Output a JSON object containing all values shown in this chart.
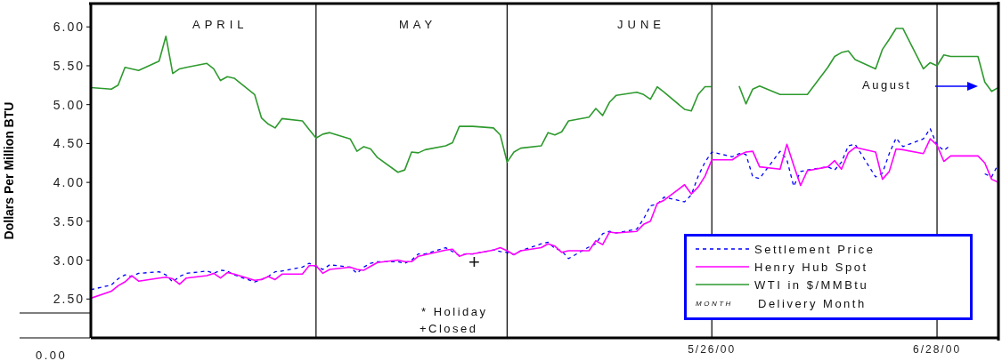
{
  "chart_data": {
    "type": "line",
    "ylabel": "Dollars Per Million BTU",
    "x": [
      "2000-02-25",
      "2000-02-28",
      "2000-02-29",
      "2000-03-01",
      "2000-03-02",
      "2000-03-03",
      "2000-03-06",
      "2000-03-07",
      "2000-03-08",
      "2000-03-09",
      "2000-03-10",
      "2000-03-13",
      "2000-03-14",
      "2000-03-15",
      "2000-03-16",
      "2000-03-17",
      "2000-03-20",
      "2000-03-21",
      "2000-03-22",
      "2000-03-23",
      "2000-03-24",
      "2000-03-27",
      "2000-03-28",
      "2000-03-29",
      "2000-03-30",
      "2000-03-31",
      "2000-04-03",
      "2000-04-04",
      "2000-04-05",
      "2000-04-06",
      "2000-04-07",
      "2000-04-10",
      "2000-04-11",
      "2000-04-12",
      "2000-04-13",
      "2000-04-14",
      "2000-04-17",
      "2000-04-18",
      "2000-04-19",
      "2000-04-20",
      "2000-04-21",
      "2000-04-24",
      "2000-04-25",
      "2000-04-26",
      "2000-04-27",
      "2000-04-28",
      "2000-05-01",
      "2000-05-02",
      "2000-05-03",
      "2000-05-04",
      "2000-05-05",
      "2000-05-08",
      "2000-05-09",
      "2000-05-10",
      "2000-05-11",
      "2000-05-12",
      "2000-05-15",
      "2000-05-16",
      "2000-05-17",
      "2000-05-18",
      "2000-05-19",
      "2000-05-22",
      "2000-05-23",
      "2000-05-24",
      "2000-05-25",
      "2000-05-26",
      "2000-05-29",
      "2000-05-30",
      "2000-05-31",
      "2000-06-01",
      "2000-06-02",
      "2000-06-05",
      "2000-06-06",
      "2000-06-07",
      "2000-06-08",
      "2000-06-09",
      "2000-06-12",
      "2000-06-13",
      "2000-06-14",
      "2000-06-15",
      "2000-06-16",
      "2000-06-19",
      "2000-06-20",
      "2000-06-21",
      "2000-06-22",
      "2000-06-23",
      "2000-06-26",
      "2000-06-27",
      "2000-06-28",
      "2000-06-29",
      "2000-06-30",
      "2000-07-03",
      "2000-07-04",
      "2000-07-05",
      "2000-07-06",
      "2000-07-07"
    ],
    "series": [
      {
        "name": "Settlement Price",
        "color": "#0000ff",
        "line_style": "dashed",
        "values": [
          2.62,
          2.68,
          2.76,
          2.81,
          2.79,
          2.83,
          2.85,
          2.81,
          2.72,
          2.79,
          2.83,
          2.86,
          2.83,
          2.87,
          2.86,
          2.81,
          2.72,
          2.75,
          2.79,
          2.85,
          2.86,
          2.91,
          2.96,
          2.92,
          2.88,
          2.94,
          2.91,
          2.83,
          2.91,
          2.96,
          2.98,
          2.98,
          2.96,
          3.0,
          3.08,
          3.08,
          3.16,
          3.11,
          3.06,
          3.08,
          3.08,
          3.13,
          3.11,
          3.1,
          3.07,
          3.12,
          3.21,
          3.23,
          3.15,
          3.12,
          3.02,
          3.17,
          3.21,
          3.34,
          3.37,
          3.35,
          3.4,
          3.53,
          3.7,
          3.72,
          3.81,
          3.75,
          3.84,
          4.08,
          4.26,
          4.39,
          4.33,
          4.37,
          4.36,
          4.07,
          4.05,
          4.4,
          4.29,
          3.95,
          4.14,
          4.16,
          4.2,
          4.16,
          4.26,
          4.47,
          4.49,
          4.07,
          4.12,
          4.37,
          4.57,
          4.46,
          4.56,
          4.69,
          4.48,
          4.41,
          4.48,
          null,
          null,
          4.11,
          4.07,
          4.24
        ]
      },
      {
        "name": "Henry Hub Spot",
        "color": "#ff00ff",
        "line_style": "solid",
        "values": [
          2.51,
          2.6,
          2.67,
          2.72,
          2.8,
          2.73,
          2.77,
          2.78,
          2.76,
          2.69,
          2.77,
          2.8,
          2.83,
          2.77,
          2.84,
          2.82,
          2.74,
          2.75,
          2.79,
          2.75,
          2.82,
          2.82,
          2.93,
          2.93,
          2.83,
          2.88,
          2.91,
          2.88,
          2.87,
          2.92,
          2.97,
          3.0,
          2.98,
          2.98,
          3.05,
          3.07,
          3.13,
          3.14,
          3.05,
          3.08,
          3.08,
          3.13,
          3.16,
          3.12,
          3.07,
          3.12,
          3.16,
          3.21,
          3.18,
          3.1,
          3.12,
          3.12,
          3.25,
          3.2,
          3.36,
          3.35,
          3.37,
          3.46,
          3.5,
          3.73,
          3.77,
          3.97,
          3.85,
          3.94,
          4.08,
          4.29,
          4.29,
          4.35,
          4.39,
          4.4,
          4.2,
          4.17,
          4.49,
          4.22,
          3.96,
          4.15,
          4.2,
          4.28,
          4.17,
          4.38,
          4.45,
          4.39,
          4.04,
          4.14,
          4.43,
          4.42,
          4.37,
          4.56,
          4.48,
          4.27,
          4.34,
          4.34,
          4.34,
          4.25,
          4.04,
          4.0
        ]
      },
      {
        "name": "WTI in $/MMBtu",
        "color": "#2e9a2e",
        "line_style": "solid",
        "values": [
          5.22,
          5.2,
          5.25,
          5.48,
          5.46,
          5.44,
          5.56,
          5.88,
          5.4,
          5.46,
          5.48,
          5.53,
          5.46,
          5.31,
          5.36,
          5.34,
          5.13,
          4.83,
          4.75,
          4.7,
          4.82,
          4.79,
          4.68,
          4.57,
          4.62,
          4.64,
          4.56,
          4.4,
          4.46,
          4.43,
          4.32,
          4.13,
          4.16,
          4.39,
          4.38,
          4.42,
          4.47,
          4.51,
          4.72,
          4.72,
          4.72,
          4.7,
          4.61,
          4.26,
          4.39,
          4.44,
          4.47,
          4.64,
          4.61,
          4.65,
          4.79,
          4.84,
          4.95,
          4.86,
          5.03,
          5.12,
          5.16,
          5.13,
          5.07,
          5.23,
          5.16,
          4.94,
          4.92,
          5.13,
          5.23,
          5.23,
          null,
          5.24,
          5.01,
          5.2,
          5.24,
          5.13,
          5.13,
          5.13,
          5.13,
          5.13,
          5.48,
          5.62,
          5.67,
          5.69,
          5.58,
          5.46,
          5.71,
          5.84,
          5.98,
          5.98,
          5.46,
          5.54,
          5.5,
          5.64,
          5.62,
          5.62,
          5.62,
          5.29,
          5.17,
          5.22
        ]
      }
    ],
    "xlim": [
      "2000-02-25",
      "2000-07-07"
    ],
    "xticks": [
      {
        "value": "2000-05-26",
        "label": "5/26/00"
      },
      {
        "value": "2000-06-28",
        "label": "6/28/00"
      }
    ],
    "ylim": [
      2.0,
      6.3
    ],
    "yticks": [
      {
        "value": 2.5,
        "label": "2.50"
      },
      {
        "value": 3,
        "label": "3.00"
      },
      {
        "value": 3.5,
        "label": "3.50"
      },
      {
        "value": 4,
        "label": "4.00"
      },
      {
        "value": 4.5,
        "label": "4.50"
      },
      {
        "value": 5,
        "label": "5.00"
      },
      {
        "value": 5.5,
        "label": "5.50"
      },
      {
        "value": 6,
        "label": "6.00"
      }
    ],
    "ref_lines": [
      {
        "axis": "x",
        "value": "2000-03-29",
        "color": "#000000"
      },
      {
        "axis": "x",
        "value": "2000-04-26",
        "color": "#000000"
      },
      {
        "axis": "x",
        "value": "2000-05-26",
        "color": "#000000"
      },
      {
        "axis": "x",
        "value": "2000-06-28",
        "color": "#000000"
      }
    ],
    "annotations": [
      "APRIL",
      "MAY",
      "JUNE",
      "+",
      "* Holiday",
      "+Closed",
      "August",
      "MONTH",
      "Delivery Month",
      "0.00"
    ],
    "marker": "none",
    "legend": "bottom right"
  }
}
